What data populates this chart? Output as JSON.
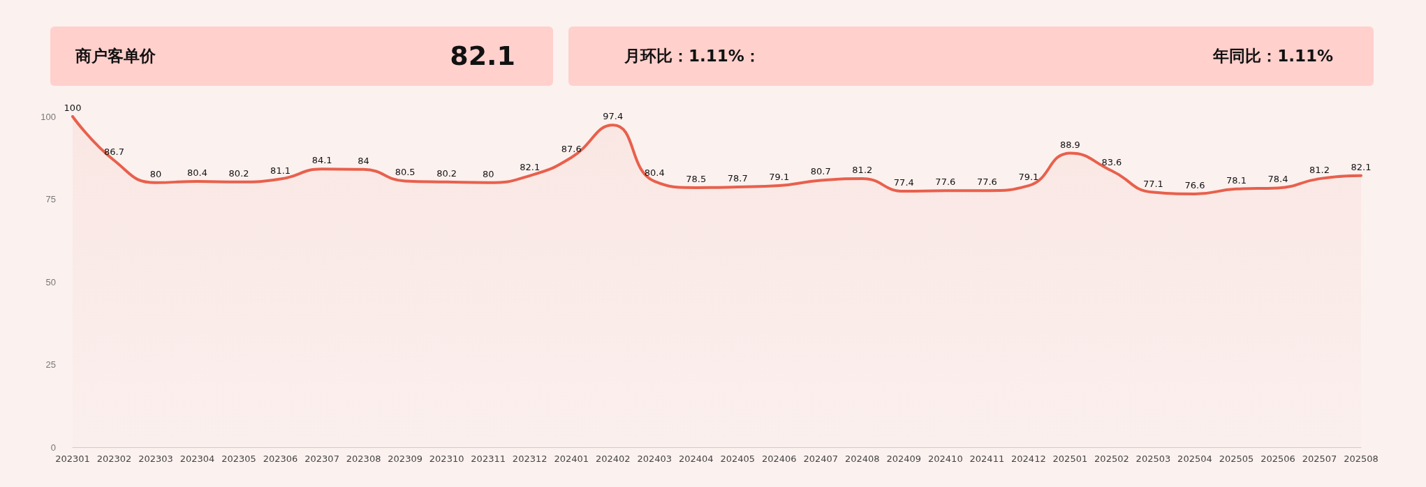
{
  "chart_data": {
    "type": "area",
    "categories": [
      "202301",
      "202302",
      "202303",
      "202304",
      "202305",
      "202306",
      "202307",
      "202308",
      "202309",
      "202310",
      "202311",
      "202312",
      "202401",
      "202402",
      "202403",
      "202404",
      "202405",
      "202406",
      "202407",
      "202408",
      "202409",
      "202410",
      "202411",
      "202412",
      "202501",
      "202502",
      "202503",
      "202504",
      "202505",
      "202506",
      "202507",
      "202508"
    ],
    "values": [
      100,
      86.7,
      80,
      80.4,
      80.2,
      81.1,
      84.1,
      84,
      80.5,
      80.2,
      80,
      82.1,
      87.6,
      97.4,
      80.4,
      78.5,
      78.7,
      79.1,
      80.7,
      81.2,
      77.4,
      77.6,
      77.6,
      79.1,
      88.9,
      83.6,
      77.1,
      76.6,
      78.1,
      78.4,
      81.2,
      82.1
    ],
    "color": "#e8604c",
    "ylim": [
      0,
      100
    ],
    "yticks": [
      0,
      25,
      50,
      75,
      100
    ],
    "data_labels": true,
    "marker": "none",
    "annotations": [
      "商户客单价",
      "82.1",
      "月环比：1.11%：",
      "年同比：1.11%"
    ]
  }
}
